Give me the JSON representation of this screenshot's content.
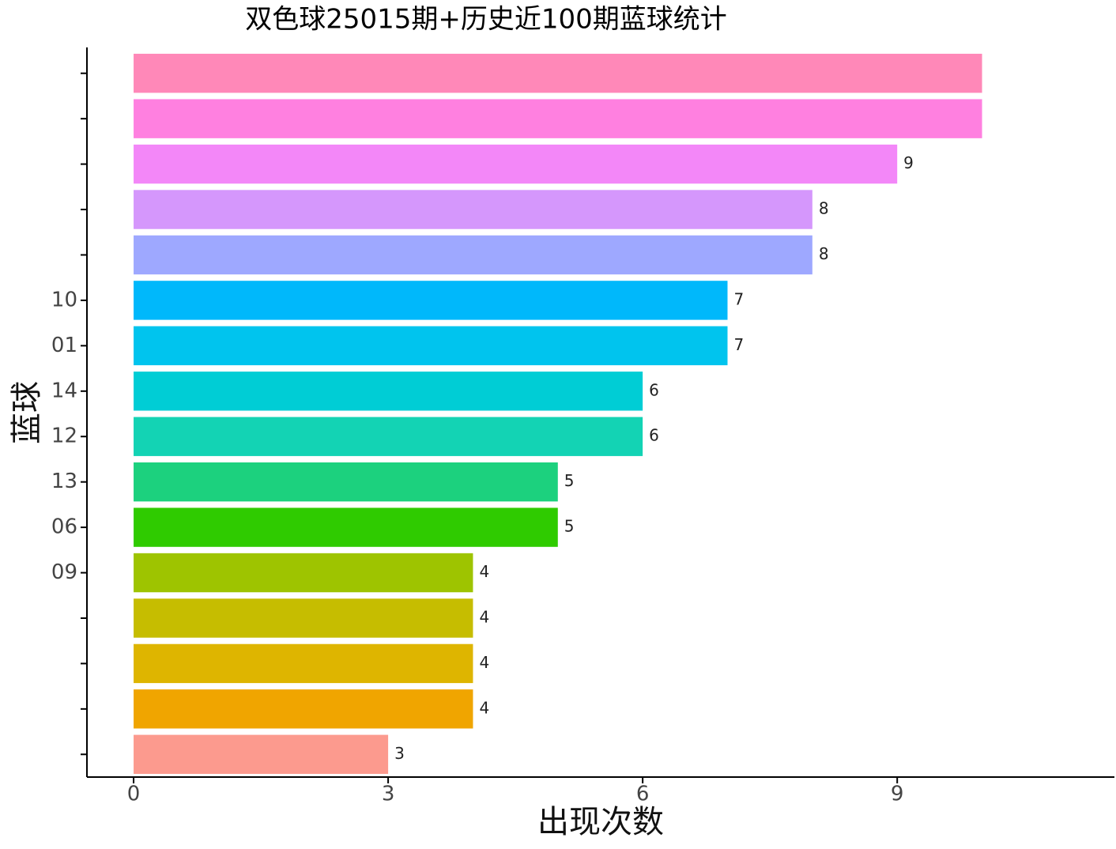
{
  "chart_data": {
    "type": "barh",
    "title": "双色球25015期+历史近100期蓝球统计",
    "x_label": "出现次数",
    "y_label": "蓝球",
    "categories": [
      null,
      null,
      null,
      null,
      null,
      "10",
      "01",
      "14",
      "12",
      "13",
      "06",
      "09",
      null,
      null,
      null,
      null
    ],
    "values": [
      10,
      10,
      9,
      8,
      8,
      7,
      7,
      6,
      6,
      5,
      5,
      4,
      4,
      4,
      4,
      3
    ],
    "value_labels": [
      null,
      null,
      9,
      8,
      8,
      7,
      7,
      6,
      6,
      5,
      5,
      4,
      4,
      4,
      4,
      3
    ],
    "colors": [
      "#ff88b8",
      "#ff80e0",
      "#f387f8",
      "#d597fc",
      "#9ea8ff",
      "#00b8fb",
      "#00c4ee",
      "#00cdd5",
      "#13d3b4",
      "#1cd17e",
      "#2fcb00",
      "#9ec400",
      "#c6bd00",
      "#deb500",
      "#f0a500",
      "#fc9a8e"
    ],
    "xlim": [
      -0.55,
      11.56
    ],
    "xticks": [
      0,
      3,
      6,
      9
    ],
    "grid": false
  }
}
